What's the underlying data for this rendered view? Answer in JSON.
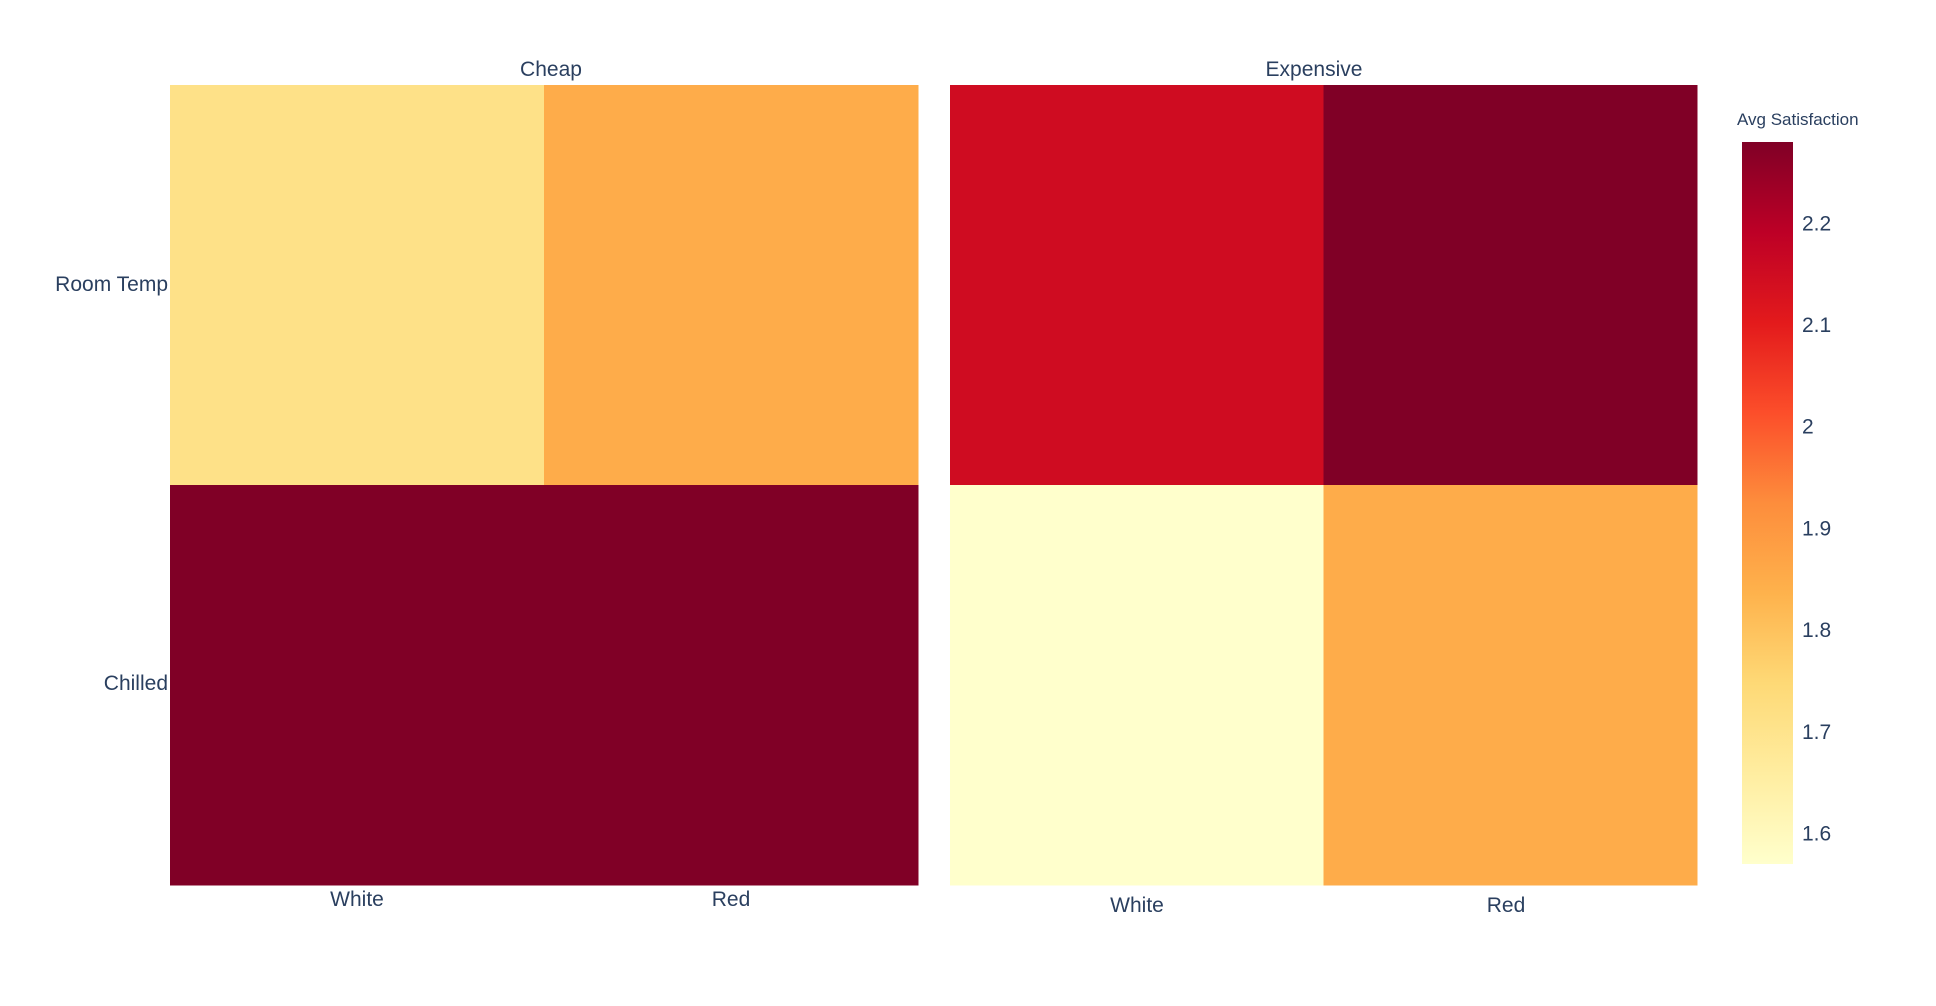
{
  "chart_data": {
    "type": "heatmap",
    "colorscale": {
      "name": "YlOrRd",
      "title": "Avg Satisfaction",
      "range": [
        1.57,
        2.28
      ],
      "ticks": [
        "1.6",
        "1.7",
        "1.8",
        "1.9",
        "2",
        "2.1",
        "2.2"
      ],
      "colors": [
        "#ffffcc",
        "#ffeda0",
        "#fed976",
        "#feb24c",
        "#fd8d3c",
        "#fc4e2a",
        "#e31a1c",
        "#bd0026",
        "#800026"
      ]
    },
    "y_categories": [
      "Room Temp",
      "Chilled"
    ],
    "panels": [
      {
        "title": "Cheap",
        "x_categories": [
          "White",
          "Red"
        ],
        "values": [
          [
            1.71,
            1.85
          ],
          [
            2.28,
            2.28
          ]
        ]
      },
      {
        "title": "Expensive",
        "x_categories": [
          "White",
          "Red"
        ],
        "values": [
          [
            2.15,
            2.28
          ],
          [
            1.57,
            1.85
          ]
        ]
      }
    ]
  }
}
